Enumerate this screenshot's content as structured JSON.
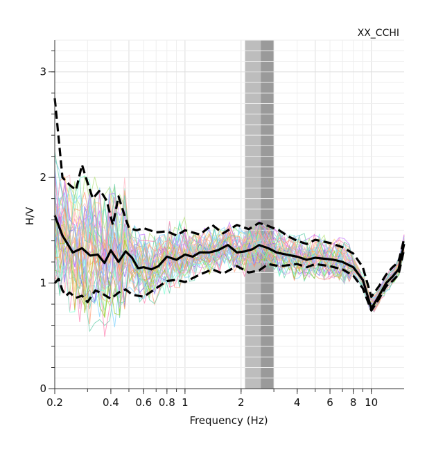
{
  "chart_data": {
    "type": "line",
    "title": "XX_CCHI",
    "xlabel": "Frequency (Hz)",
    "ylabel": "H/V",
    "x_scale": "log",
    "xlim": [
      0.2,
      15
    ],
    "ylim": [
      0,
      3.3
    ],
    "grid": true,
    "x_tick_labels": [
      {
        "value": 0.2,
        "label": "0.2"
      },
      {
        "value": 0.4,
        "label": "0.4"
      },
      {
        "value": 0.6,
        "label": "0.6"
      },
      {
        "value": 0.8,
        "label": "0.8"
      },
      {
        "value": 1,
        "label": "1"
      },
      {
        "value": 2,
        "label": "2"
      },
      {
        "value": 4,
        "label": "4"
      },
      {
        "value": 6,
        "label": "6"
      },
      {
        "value": 8,
        "label": "8"
      },
      {
        "value": 10,
        "label": "10"
      }
    ],
    "y_tick_labels": [
      {
        "value": 0,
        "label": "0"
      },
      {
        "value": 1,
        "label": "1"
      },
      {
        "value": 2,
        "label": "2"
      },
      {
        "value": 3,
        "label": "3"
      }
    ],
    "peak_bands": [
      {
        "from": 2.1,
        "to": 2.55,
        "color": "#bdbdbd"
      },
      {
        "from": 2.55,
        "to": 3.0,
        "color": "#9a9a9a"
      }
    ],
    "series": [
      {
        "style": "solid",
        "color": "#000000",
        "x": [
          0.2,
          0.22,
          0.25,
          0.28,
          0.31,
          0.34,
          0.37,
          0.4,
          0.44,
          0.48,
          0.52,
          0.56,
          0.6,
          0.66,
          0.72,
          0.8,
          0.9,
          1.0,
          1.1,
          1.2,
          1.35,
          1.5,
          1.7,
          1.9,
          2.1,
          2.3,
          2.5,
          2.8,
          3.1,
          3.5,
          4.0,
          4.5,
          5.0,
          5.6,
          6.3,
          7.0,
          8.0,
          9.0,
          10.0,
          11.0,
          12.0,
          13.0,
          14.0,
          15.0
        ],
        "y": [
          1.64,
          1.45,
          1.29,
          1.33,
          1.26,
          1.27,
          1.19,
          1.31,
          1.2,
          1.3,
          1.24,
          1.14,
          1.15,
          1.13,
          1.16,
          1.25,
          1.22,
          1.27,
          1.25,
          1.29,
          1.29,
          1.31,
          1.36,
          1.29,
          1.3,
          1.32,
          1.36,
          1.33,
          1.29,
          1.27,
          1.25,
          1.22,
          1.24,
          1.23,
          1.22,
          1.2,
          1.15,
          1.03,
          0.76,
          0.88,
          1.0,
          1.06,
          1.13,
          1.37
        ]
      },
      {
        "style": "dashed",
        "color": "#000000",
        "x": [
          0.2,
          0.22,
          0.24,
          0.26,
          0.28,
          0.3,
          0.32,
          0.35,
          0.38,
          0.41,
          0.44,
          0.47,
          0.5,
          0.55,
          0.6,
          0.7,
          0.8,
          0.9,
          1.0,
          1.2,
          1.4,
          1.6,
          1.9,
          2.2,
          2.5,
          2.8,
          3.2,
          3.6,
          4.0,
          4.5,
          5.0,
          6.0,
          7.0,
          8.0,
          9.0,
          10.0,
          11.0,
          12.0,
          13.0,
          14.0,
          15.0
        ],
        "y": [
          2.75,
          2.0,
          1.93,
          1.88,
          2.12,
          1.95,
          1.8,
          1.88,
          1.78,
          1.55,
          1.82,
          1.66,
          1.52,
          1.5,
          1.52,
          1.48,
          1.49,
          1.45,
          1.5,
          1.46,
          1.55,
          1.47,
          1.55,
          1.51,
          1.57,
          1.54,
          1.5,
          1.44,
          1.4,
          1.37,
          1.41,
          1.38,
          1.34,
          1.28,
          1.15,
          0.87,
          0.97,
          1.08,
          1.15,
          1.2,
          1.42
        ]
      },
      {
        "style": "dashed",
        "color": "#000000",
        "x": [
          0.2,
          0.21,
          0.22,
          0.23,
          0.24,
          0.26,
          0.28,
          0.3,
          0.33,
          0.36,
          0.4,
          0.44,
          0.48,
          0.52,
          0.56,
          0.6,
          0.7,
          0.8,
          0.9,
          1.0,
          1.2,
          1.4,
          1.6,
          1.9,
          2.2,
          2.5,
          2.8,
          3.2,
          3.6,
          4.0,
          4.5,
          5.0,
          6.0,
          7.0,
          8.0,
          9.0,
          10.0,
          11.0,
          12.0,
          13.0,
          14.0,
          15.0
        ],
        "y": [
          1.0,
          1.04,
          0.93,
          0.88,
          0.91,
          0.86,
          0.88,
          0.82,
          0.93,
          0.9,
          0.85,
          0.91,
          0.94,
          0.89,
          0.88,
          0.87,
          0.95,
          1.02,
          1.03,
          1.01,
          1.08,
          1.13,
          1.09,
          1.16,
          1.1,
          1.12,
          1.18,
          1.16,
          1.17,
          1.18,
          1.15,
          1.18,
          1.16,
          1.13,
          1.07,
          0.95,
          0.74,
          0.85,
          0.97,
          1.02,
          1.08,
          1.32
        ]
      }
    ],
    "colors": {
      "window_curves": [
        "#7b68ee",
        "#ff7fb0",
        "#7fd3ff",
        "#b7e27f",
        "#ffd27f",
        "#c77fff",
        "#7fffd4",
        "#ffa07a",
        "#9acd32",
        "#87cefa",
        "#dda0dd",
        "#f4a460",
        "#66cdaa",
        "#ffb6c1",
        "#b0c4de"
      ],
      "grid_major": "#dddddd",
      "grid_minor": "#eeeeee",
      "axis": "#333333"
    }
  }
}
